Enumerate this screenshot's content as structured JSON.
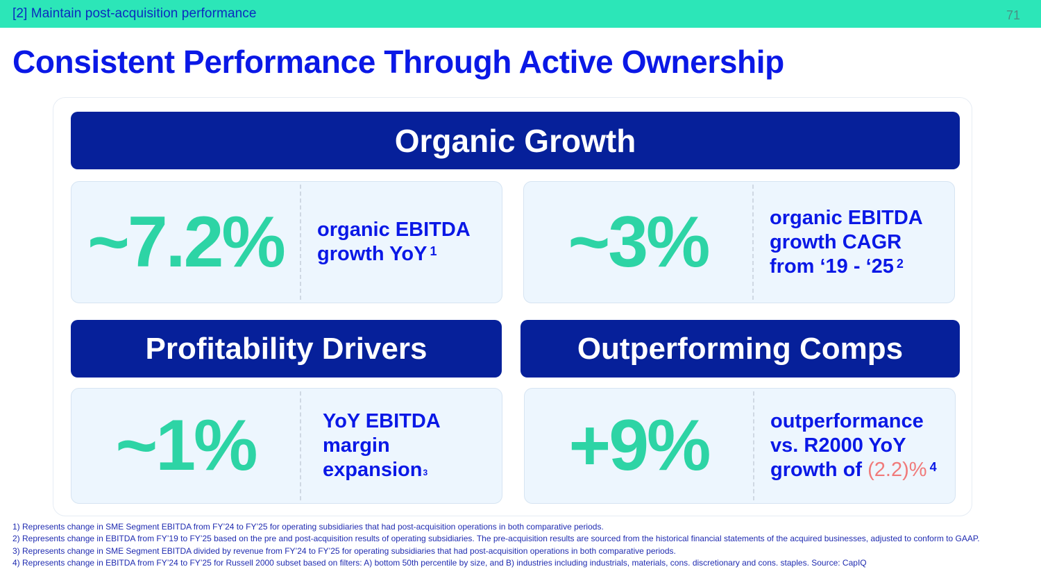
{
  "header": {
    "section_label": "[2] Maintain post-acquisition performance",
    "page_number": "71"
  },
  "title": "Consistent Performance Through Active Ownership",
  "banners": {
    "organic_growth": "Organic Growth",
    "profitability_drivers": "Profitability Drivers",
    "outperforming_comps": "Outperforming Comps"
  },
  "stats": [
    {
      "value": "~7.2%",
      "lines": [
        "organic EBITDA",
        "growth YoY"
      ],
      "footnote_ref": "1"
    },
    {
      "value": "~3%",
      "lines": [
        "organic EBITDA",
        "growth CAGR",
        "from ‘19 - ‘25"
      ],
      "footnote_ref": "2"
    },
    {
      "value": "~1%",
      "lines": [
        "YoY EBITDA",
        "margin",
        "expansion"
      ],
      "footnote_ref": "3"
    },
    {
      "value": "+9%",
      "lines": [
        "outperformance",
        "vs. R2000 YoY",
        "growth of "
      ],
      "negative_value": "(2.2)%",
      "footnote_ref": "4"
    }
  ],
  "colors": {
    "top_bar": "#2ce6b8",
    "title_blue": "#0a18e6",
    "banner_navy": "#06209a",
    "stat_green": "#2dd4a5",
    "negative_red": "#f07a7a",
    "card_bg": "#edf6fe"
  },
  "footnotes": [
    "1) Represents change in SME Segment EBITDA from FY’24 to FY’25 for operating subsidiaries that had post-acquisition operations in both comparative periods.",
    "2) Represents change in EBITDA from FY’19 to FY’25 based on the pre and post-acquisition results of operating subsidiaries. The pre-acquisition results are sourced from the historical financial statements of the acquired businesses, adjusted to conform to GAAP.",
    "3) Represents change in SME Segment EBITDA divided by revenue from FY’24 to FY’25 for operating subsidiaries that had post-acquisition operations in both comparative periods.",
    "4) Represents change in EBITDA from FY’24 to FY’25 for Russell 2000 subset based on filters: A) bottom 50th percentile by size, and B) industries including industrials, materials, cons. discretionary and cons. staples.  Source: CapIQ"
  ]
}
